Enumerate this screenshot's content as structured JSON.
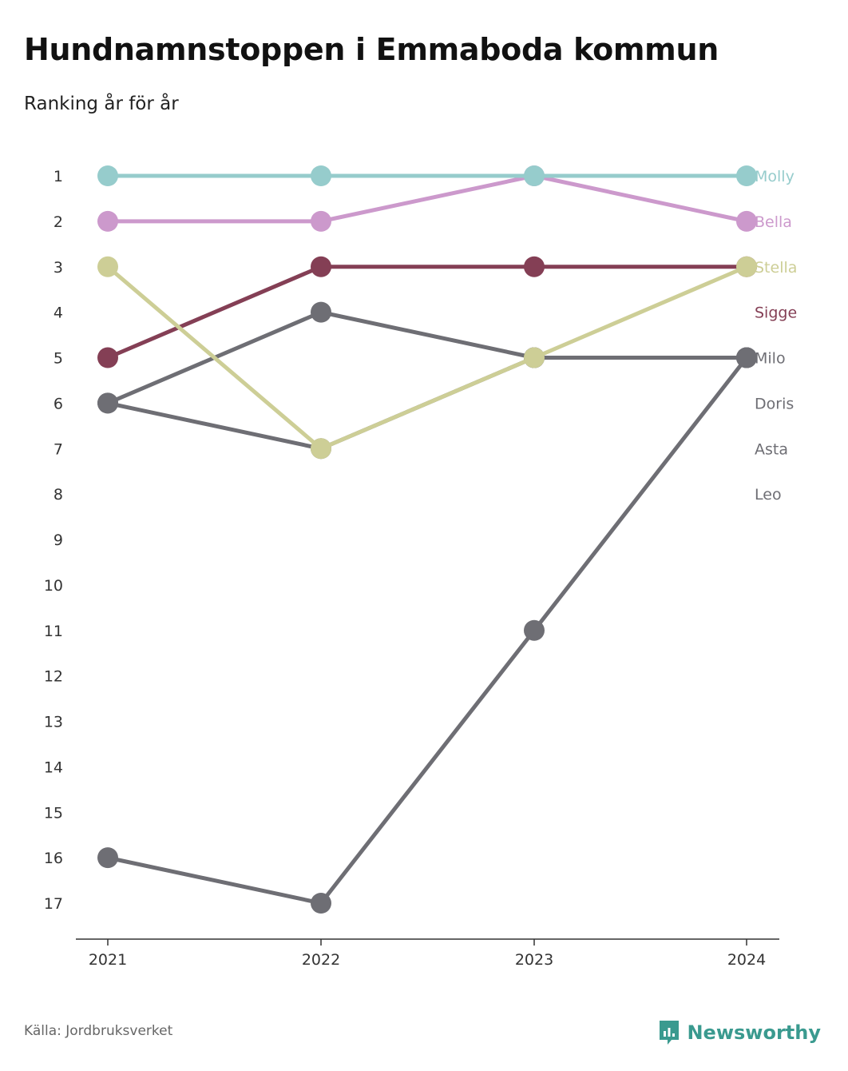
{
  "title": "Hundnamnstoppen i Emmaboda kommun",
  "subtitle": "Ranking år för år",
  "source": "Källa: Jordbruksverket",
  "brand": "Newsworthy",
  "colors": {
    "brand": "#3a9a8f",
    "axis": "#333333"
  },
  "chart_data": {
    "type": "line",
    "x": [
      "2021",
      "2022",
      "2023",
      "2024"
    ],
    "ylim": [
      1,
      17
    ],
    "y_ticks": [
      "1",
      "2",
      "3",
      "4",
      "5",
      "6",
      "7",
      "8",
      "9",
      "10",
      "11",
      "12",
      "13",
      "14",
      "15",
      "16",
      "17"
    ],
    "y_inverted": true,
    "series": [
      {
        "name": "Leo",
        "color": "#6e6e74",
        "values": [
          16,
          17,
          11,
          5
        ],
        "show_line": true
      },
      {
        "name": "Asta",
        "color": "#6e6e74",
        "values": [
          6,
          4,
          5,
          5
        ],
        "show_line": true
      },
      {
        "name": "Doris",
        "color": "#6e6e74",
        "values": [
          6,
          7,
          5,
          5
        ],
        "show_line": true
      },
      {
        "name": "Milo",
        "color": "#6e6e74",
        "values": [
          null,
          null,
          5,
          5
        ],
        "show_line": true
      },
      {
        "name": "Sigge",
        "color": "#843f55",
        "values": [
          5,
          3,
          3,
          3
        ],
        "show_line": true
      },
      {
        "name": "Stella",
        "color": "#cdce96",
        "values": [
          3,
          7,
          5,
          3
        ],
        "show_line": true
      },
      {
        "name": "Bella",
        "color": "#cc99cc",
        "values": [
          2,
          2,
          1,
          2
        ],
        "show_line": true
      },
      {
        "name": "Molly",
        "color": "#96cccc",
        "values": [
          1,
          1,
          1,
          1
        ],
        "show_line": true
      }
    ],
    "labels": [
      {
        "name": "Molly",
        "color": "#96cccc"
      },
      {
        "name": "Bella",
        "color": "#cc99cc"
      },
      {
        "name": "Stella",
        "color": "#cdce96"
      },
      {
        "name": "Sigge",
        "color": "#843f55"
      },
      {
        "name": "Milo",
        "color": "#6e6e74"
      },
      {
        "name": "Doris",
        "color": "#6e6e74"
      },
      {
        "name": "Asta",
        "color": "#6e6e74"
      },
      {
        "name": "Leo",
        "color": "#6e6e74"
      }
    ]
  }
}
